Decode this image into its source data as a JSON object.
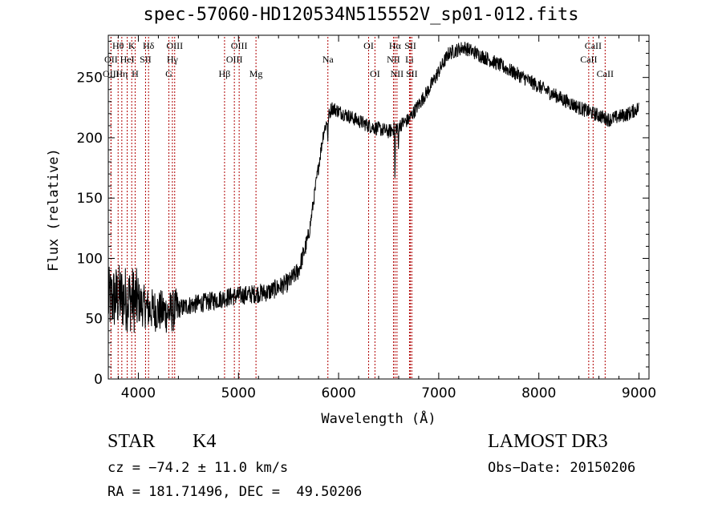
{
  "chart_data": {
    "type": "line",
    "title": "spec-57060-HD120534N515552V_sp01-012.fits",
    "xlabel": "Wavelength (Å)",
    "ylabel": "Flux (relative)",
    "xlim": [
      3700,
      9100
    ],
    "ylim": [
      0,
      285
    ],
    "xticks": [
      4000,
      5000,
      6000,
      7000,
      8000,
      9000
    ],
    "yticks": [
      0,
      50,
      100,
      150,
      200,
      250
    ],
    "spectrum_anchors": [
      {
        "x": 3700,
        "y": 65
      },
      {
        "x": 3800,
        "y": 68
      },
      {
        "x": 3950,
        "y": 66
      },
      {
        "x": 4100,
        "y": 58
      },
      {
        "x": 4300,
        "y": 55
      },
      {
        "x": 4500,
        "y": 61
      },
      {
        "x": 4700,
        "y": 64
      },
      {
        "x": 4900,
        "y": 68
      },
      {
        "x": 5100,
        "y": 70
      },
      {
        "x": 5300,
        "y": 72
      },
      {
        "x": 5500,
        "y": 80
      },
      {
        "x": 5600,
        "y": 90
      },
      {
        "x": 5700,
        "y": 118
      },
      {
        "x": 5780,
        "y": 165
      },
      {
        "x": 5850,
        "y": 205
      },
      {
        "x": 5930,
        "y": 225
      },
      {
        "x": 6100,
        "y": 218
      },
      {
        "x": 6300,
        "y": 210
      },
      {
        "x": 6500,
        "y": 205
      },
      {
        "x": 6700,
        "y": 215
      },
      {
        "x": 6900,
        "y": 240
      },
      {
        "x": 7100,
        "y": 270
      },
      {
        "x": 7250,
        "y": 275
      },
      {
        "x": 7500,
        "y": 265
      },
      {
        "x": 7800,
        "y": 252
      },
      {
        "x": 8100,
        "y": 238
      },
      {
        "x": 8400,
        "y": 225
      },
      {
        "x": 8700,
        "y": 215
      },
      {
        "x": 8900,
        "y": 220
      },
      {
        "x": 9000,
        "y": 225
      }
    ],
    "absorption_features": [
      {
        "x": 5893,
        "depth": 20
      },
      {
        "x": 6563,
        "depth": 50
      },
      {
        "x": 6597,
        "depth": 25
      }
    ],
    "lines": [
      {
        "label": "Hθ",
        "x": 3798,
        "row": 1
      },
      {
        "label": "OII",
        "x": 3727,
        "row": 2
      },
      {
        "label": "OIII",
        "x": 3727,
        "row": 3
      },
      {
        "label": "K",
        "x": 3934,
        "row": 1
      },
      {
        "label": "HeI",
        "x": 3889,
        "row": 2
      },
      {
        "label": "Hη",
        "x": 3835,
        "row": 3
      },
      {
        "label": "H",
        "x": 3968,
        "row": 3
      },
      {
        "label": "SII",
        "x": 4072,
        "row": 2
      },
      {
        "label": "Hδ",
        "x": 4102,
        "row": 1
      },
      {
        "label": "OIII",
        "x": 4363,
        "row": 1
      },
      {
        "label": "Hγ",
        "x": 4340,
        "row": 2
      },
      {
        "label": "G",
        "x": 4305,
        "row": 3
      },
      {
        "label": "OIII",
        "x": 5007,
        "row": 1
      },
      {
        "label": "OIII",
        "x": 4959,
        "row": 2
      },
      {
        "label": "Hβ",
        "x": 4861,
        "row": 3
      },
      {
        "label": "Mg",
        "x": 5175,
        "row": 3
      },
      {
        "label": "Na",
        "x": 5893,
        "row": 2
      },
      {
        "label": "OI",
        "x": 6300,
        "row": 1
      },
      {
        "label": "OI",
        "x": 6363,
        "row": 3
      },
      {
        "label": "Hα",
        "x": 6563,
        "row": 1
      },
      {
        "label": "NII",
        "x": 6548,
        "row": 2
      },
      {
        "label": "NII",
        "x": 6583,
        "row": 3
      },
      {
        "label": "SII",
        "x": 6717,
        "row": 1
      },
      {
        "label": "Li",
        "x": 6708,
        "row": 2
      },
      {
        "label": "SII",
        "x": 6731,
        "row": 3
      },
      {
        "label": "CaII",
        "x": 8542,
        "row": 1
      },
      {
        "label": "CaII",
        "x": 8498,
        "row": 2
      },
      {
        "label": "CaII",
        "x": 8662,
        "row": 3
      }
    ]
  },
  "info": {
    "class_label": "STAR",
    "subclass": "K4",
    "survey": "LAMOST DR3",
    "cz": "cz = −74.2 ± 11.0 km/s",
    "obs_date": "Obs−Date: 20150206",
    "coords": "RA = 181.71496, DEC =  49.50206"
  },
  "colors": {
    "spectrum": "#000000",
    "line_marker": "#b00000"
  }
}
